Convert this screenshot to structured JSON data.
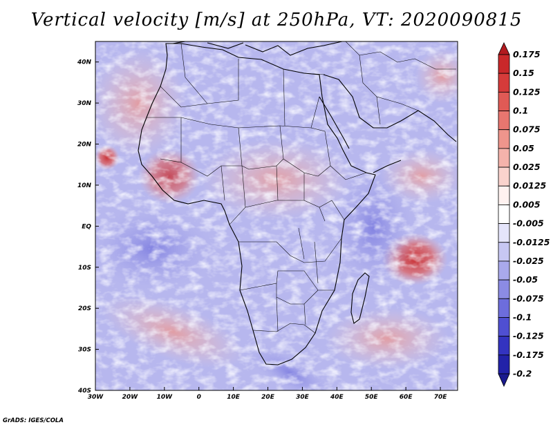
{
  "title": "Vertical velocity [m/s] at 250hPa, VT: 2020090815",
  "footer": "GrADS: IGES/COLA",
  "map": {
    "lat_labels": [
      "40N",
      "30N",
      "20N",
      "10N",
      "EQ",
      "10S",
      "20S",
      "30S",
      "40S"
    ],
    "lon_labels": [
      "30W",
      "20W",
      "10W",
      "0",
      "10E",
      "20E",
      "30E",
      "40E",
      "50E",
      "60E",
      "70E"
    ],
    "lat_range": [
      -40,
      45
    ],
    "lon_range": [
      -30,
      75
    ]
  },
  "colorbar": {
    "levels": [
      "0.175",
      "0.15",
      "0.125",
      "0.1",
      "0.075",
      "0.05",
      "0.025",
      "0.0125",
      "0.005",
      "-0.005",
      "-0.0125",
      "-0.025",
      "-0.05",
      "-0.075",
      "-0.1",
      "-0.125",
      "-0.175",
      "-0.2"
    ],
    "colors": [
      "#b21a1f",
      "#c9282a",
      "#d63b3a",
      "#e05a55",
      "#e8766f",
      "#ef958c",
      "#f5b3ab",
      "#fad3cd",
      "#fff2f0",
      "#ffffff",
      "#e5e5fb",
      "#c7c7f3",
      "#a9a9ec",
      "#8b8be4",
      "#6d6ddc",
      "#4f4fd2",
      "#3333c0",
      "#2222a8",
      "#1a1a8e"
    ]
  }
}
